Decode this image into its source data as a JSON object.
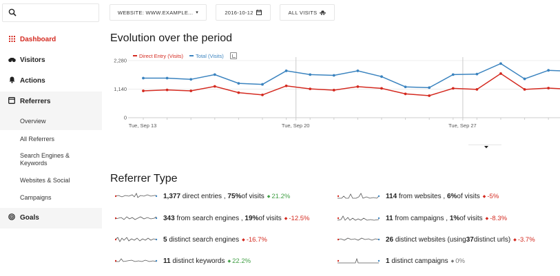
{
  "sidebar": {
    "search_icon": "search-icon",
    "items": [
      {
        "label": "Dashboard",
        "icon": "grid-icon",
        "active": true
      },
      {
        "label": "Visitors",
        "icon": "binoculars-icon"
      },
      {
        "label": "Actions",
        "icon": "bell-icon"
      },
      {
        "label": "Referrers",
        "icon": "square-icon"
      }
    ],
    "sub_items": [
      "Overview",
      "All Referrers",
      "Search Engines & Keywords",
      "Websites & Social",
      "Campaigns"
    ],
    "goals": {
      "label": "Goals",
      "icon": "target-icon"
    }
  },
  "topbar": {
    "website": "WEBSITE: WWW.EXAMPLE...",
    "date": "2016-10-12",
    "segment": "ALL VISITS"
  },
  "evolution": {
    "title": "Evolution over the period",
    "legend": [
      {
        "name": "Direct Entry (Visits)",
        "color": "#d4291f"
      },
      {
        "name": "Total (Visits)",
        "color": "#3a83bf"
      }
    ]
  },
  "chart_data": {
    "type": "line",
    "yticks": [
      "2,280",
      "1,140",
      "0"
    ],
    "ylim": [
      0,
      2280
    ],
    "xticks": [
      "Tue, Sep 13",
      "Tue, Sep 20",
      "Tue, Sep 27"
    ],
    "series": [
      {
        "name": "Direct Entry (Visits)",
        "color": "#d4291f",
        "values": [
          1070,
          1110,
          1070,
          1250,
          1000,
          910,
          1270,
          1150,
          1100,
          1240,
          1170,
          950,
          880,
          1170,
          1130,
          1760,
          1130,
          1180,
          1130
        ]
      },
      {
        "name": "Total (Visits)",
        "color": "#3a83bf",
        "values": [
          1580,
          1580,
          1530,
          1720,
          1370,
          1330,
          1870,
          1720,
          1690,
          1870,
          1640,
          1230,
          1200,
          1720,
          1740,
          2160,
          1550,
          1890,
          1850
        ]
      }
    ]
  },
  "referrer": {
    "title": "Referrer Type",
    "left": [
      {
        "value": "1,377",
        "text": " direct entries , ",
        "pct": "75%",
        "pct_text": " of visits",
        "trend": "up",
        "change": "21.2%"
      },
      {
        "value": "343",
        "text": " from search engines , ",
        "pct": "19%",
        "pct_text": " of visits",
        "trend": "down",
        "change": "-12.5%"
      },
      {
        "value": "5",
        "text": " distinct search engines",
        "pct": "",
        "pct_text": "",
        "trend": "down",
        "change": "-16.7%"
      },
      {
        "value": "11",
        "text": " distinct keywords",
        "pct": "",
        "pct_text": "",
        "trend": "up",
        "change": "22.2%"
      }
    ],
    "right": [
      {
        "value": "114",
        "text": " from websites , ",
        "pct": "6%",
        "pct_text": " of visits",
        "trend": "down",
        "change": "-5%"
      },
      {
        "value": "11",
        "text": " from campaigns , ",
        "pct": "1%",
        "pct_text": " of visits",
        "trend": "down",
        "change": "-8.3%"
      },
      {
        "value": "26",
        "text": " distinct websites (using ",
        "pct": "37",
        "pct_text": " distinct urls)",
        "trend": "down",
        "change": "-3.7%"
      },
      {
        "value": "1",
        "text": " distinct campaigns",
        "pct": "",
        "pct_text": "",
        "trend": "flat",
        "change": "0%"
      }
    ]
  }
}
